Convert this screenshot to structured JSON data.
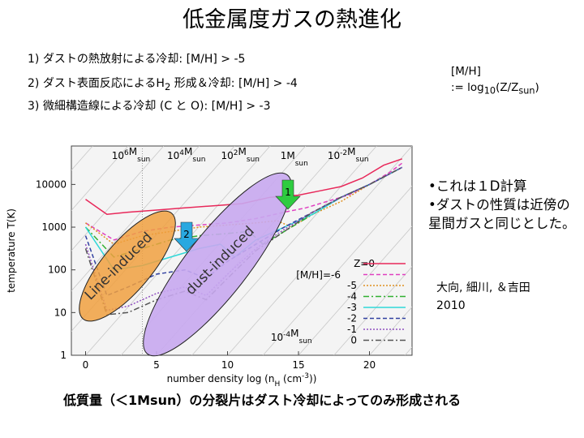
{
  "title": "低金属度ガスの熱進化",
  "items": [
    {
      "num": "1)",
      "text": "ダストの熱放射による冷却:  [M/H] > -5"
    },
    {
      "num": "2)",
      "text_before": "ダスト表面反応によるH",
      "sub": "2",
      "text_after": " 形成＆冷却: [M/H] > -4"
    },
    {
      "num": "3)",
      "text": "微細構造線による冷却 (C と O): [M/H] > -3"
    }
  ],
  "definition": {
    "line1": "[M/H]",
    "prefix": ":= log",
    "sub10": "10",
    "paren_open": "(Z/Z",
    "subsun": "sun",
    "paren_close": ")"
  },
  "bullets": [
    "•これは１D計算",
    "•ダストの性質は近傍の星間ガスと同じとした。"
  ],
  "reference": {
    "authors": "大向, 細川, ＆吉田",
    "year": "2010"
  },
  "footer": "低質量（＜1Msun）の分裂片はダスト冷却によってのみ形成される",
  "chart_data": {
    "type": "line",
    "xlabel": "number density log (n_H (cm^-3))",
    "xlabel_main": "number density log (n",
    "xlabel_sub": "H",
    "xlabel_tail": " (cm",
    "xlabel_sup": "-3",
    "xlabel_end": "))",
    "ylabel": "temperature T(K)",
    "xlim": [
      -1,
      23
    ],
    "ylim_log10": [
      0,
      4.9
    ],
    "xticks": [
      "0",
      "5",
      "10",
      "15",
      "20"
    ],
    "xtick_values": [
      0,
      5,
      10,
      15,
      20
    ],
    "yticks": [
      "1",
      "10",
      "100",
      "1000",
      "10000"
    ],
    "ytick_values": [
      0,
      1,
      2,
      3,
      4
    ],
    "mass_labels": [
      {
        "base": "10",
        "exp": "6",
        "unit": "M",
        "sub": "sun",
        "x": 3.2
      },
      {
        "base": "10",
        "exp": "4",
        "unit": "M",
        "sub": "sun",
        "x": 7.1
      },
      {
        "base": "10",
        "exp": "2",
        "unit": "M",
        "sub": "sun",
        "x": 10.9
      },
      {
        "base": "",
        "exp": "",
        "unit": "1M",
        "sub": "sun",
        "x": 14.7
      },
      {
        "base": "10",
        "exp": "-2",
        "unit": "M",
        "sub": "sun",
        "x": 18.5
      }
    ],
    "bottom_mass_label": {
      "base": "10",
      "exp": "-4",
      "unit": "M",
      "sub": "sun"
    },
    "legend_title1": "Z=0",
    "legend_title2": "[M/H]=-6",
    "series": [
      {
        "name": "Z=0",
        "label": "0",
        "color": "#e8285a",
        "dash": "",
        "x": [
          0,
          1.5,
          3,
          5,
          7,
          9,
          11,
          13,
          15,
          16.5,
          18,
          19.5,
          21,
          22.3
        ],
        "y": [
          3.65,
          3.3,
          3.35,
          3.4,
          3.45,
          3.5,
          3.55,
          3.7,
          3.75,
          3.85,
          3.95,
          4.15,
          4.45,
          4.6
        ]
      },
      {
        "name": "-6",
        "label": "-6",
        "color": "#e040c0",
        "dash": "5,3",
        "x": [
          0,
          2,
          4,
          6,
          8,
          10,
          12,
          14,
          15.5,
          17,
          18.5,
          20,
          21.5,
          22.3
        ],
        "y": [
          3.1,
          2.7,
          2.9,
          3.0,
          3.05,
          3.1,
          3.2,
          3.35,
          3.45,
          3.6,
          3.75,
          4.0,
          4.3,
          4.5
        ]
      },
      {
        "name": "-5",
        "label": "-5",
        "color": "#e09020",
        "dash": "2,2",
        "x": [
          0,
          2,
          4,
          6,
          8,
          10,
          12,
          13.5,
          14.5,
          16,
          18,
          20,
          22.3
        ],
        "y": [
          3.1,
          2.6,
          2.8,
          2.9,
          3.0,
          3.05,
          3.1,
          3.15,
          3.0,
          3.3,
          3.6,
          4.0,
          4.4
        ]
      },
      {
        "name": "-4",
        "label": "-4",
        "color": "#30b030",
        "dash": "7,3,2,3",
        "x": [
          0,
          2,
          4,
          6,
          8,
          10,
          11.5,
          12.5,
          14,
          16,
          18,
          20,
          22.3
        ],
        "y": [
          3.0,
          2.3,
          2.5,
          2.7,
          2.8,
          2.85,
          2.9,
          2.6,
          2.9,
          3.3,
          3.7,
          4.0,
          4.4
        ]
      },
      {
        "name": "-3",
        "label": "-3",
        "color": "#30d8d8",
        "dash": "",
        "x": [
          0,
          2,
          4,
          6,
          8,
          9.5,
          10.5,
          12,
          14,
          16,
          18,
          20,
          22.3
        ],
        "y": [
          3.0,
          2.0,
          2.1,
          2.3,
          2.5,
          2.6,
          2.3,
          2.7,
          3.0,
          3.3,
          3.7,
          4.0,
          4.4
        ]
      },
      {
        "name": "-2",
        "label": "-2",
        "color": "#3040a0",
        "dash": "5,3",
        "x": [
          0,
          1.5,
          3,
          5,
          7,
          8.5,
          10,
          12,
          14,
          16,
          18,
          20,
          22.3
        ],
        "y": [
          2.8,
          1.4,
          1.6,
          1.9,
          2.0,
          1.8,
          2.2,
          2.6,
          3.0,
          3.35,
          3.7,
          4.0,
          4.4
        ]
      },
      {
        "name": "-1",
        "label": "-1",
        "color": "#9050c0",
        "dash": "2,2",
        "x": [
          0,
          1.5,
          3,
          5,
          7,
          8.5,
          10,
          12,
          14,
          16,
          18,
          20,
          22.3
        ],
        "y": [
          2.6,
          1.05,
          1.15,
          1.45,
          1.6,
          1.4,
          1.9,
          2.5,
          2.95,
          3.35,
          3.7,
          4.0,
          4.4
        ]
      },
      {
        "name": "0",
        "label": "0",
        "color": "#555555",
        "dash": "7,3,2,3",
        "x": [
          0,
          1.5,
          3,
          5,
          7,
          8.5,
          10,
          12,
          14,
          16,
          18,
          20,
          22.3
        ],
        "y": [
          2.5,
          0.95,
          1.0,
          1.3,
          1.5,
          1.3,
          1.8,
          2.45,
          2.9,
          3.35,
          3.7,
          4.0,
          4.4
        ]
      }
    ],
    "annotations": {
      "arrow1": "1",
      "arrow2": "2",
      "line_induced": "Line-induced",
      "dust_induced": "dust-induced"
    }
  },
  "colors": {
    "arrow1_fill": "#2ecc40",
    "arrow2_fill": "#29a8e0",
    "line_ellipse": "#f0a040",
    "dust_ellipse": "#c8a8f0"
  }
}
